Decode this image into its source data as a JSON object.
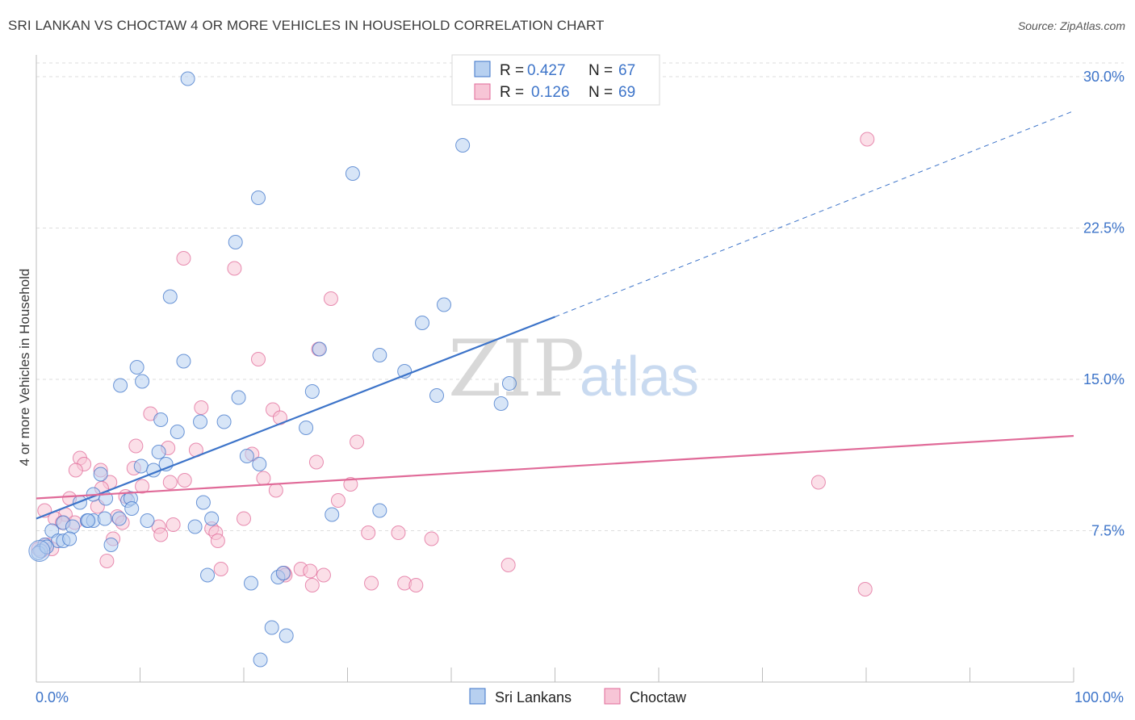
{
  "title": "SRI LANKAN VS CHOCTAW 4 OR MORE VEHICLES IN HOUSEHOLD CORRELATION CHART",
  "source": "Source: ZipAtlas.com",
  "watermark": {
    "zip": "ZIP",
    "atlas": "atlas"
  },
  "colors": {
    "blue": "#3d74c9",
    "blue_fill": "#b7d0f0",
    "pink": "#e06a98",
    "pink_fill": "#f7c5d6",
    "grid": "#dedede"
  },
  "chart_data": {
    "type": "scatter",
    "ylabel": "4 or more Vehicles in Household",
    "xlim": [
      0,
      100
    ],
    "ylim": [
      0,
      31
    ],
    "x_tick_labels": [
      "0.0%",
      "100.0%"
    ],
    "y_ticks": [
      7.5,
      15.0,
      22.5,
      30.0
    ],
    "y_tick_labels": [
      "7.5%",
      "15.0%",
      "22.5%",
      "30.0%"
    ],
    "legend": [
      {
        "name": "Sri Lankans",
        "r_label": "R =",
        "r_value": "0.427",
        "n_label": "N =",
        "n_value": "67"
      },
      {
        "name": "Choctaw",
        "r_label": "R =",
        "r_value": "0.126",
        "n_label": "N =",
        "n_value": "69"
      }
    ],
    "series": [
      {
        "name": "Sri Lankans",
        "color": "#3d74c9",
        "trend": {
          "x0": 0,
          "y0": 8.1,
          "x1": 50,
          "y1": 18.1,
          "dash_x1": 100,
          "dash_y1": 28.3
        },
        "points": [
          [
            14.6,
            29.9
          ],
          [
            41.1,
            26.6
          ],
          [
            30.5,
            25.2
          ],
          [
            21.4,
            24.0
          ],
          [
            19.2,
            21.8
          ],
          [
            12.9,
            19.1
          ],
          [
            39.3,
            18.7
          ],
          [
            37.2,
            17.8
          ],
          [
            27.3,
            16.5
          ],
          [
            33.1,
            16.2
          ],
          [
            14.2,
            15.9
          ],
          [
            9.7,
            15.6
          ],
          [
            10.2,
            14.9
          ],
          [
            8.1,
            14.7
          ],
          [
            38.6,
            14.2
          ],
          [
            35.5,
            15.4
          ],
          [
            45.6,
            14.8
          ],
          [
            44.8,
            13.8
          ],
          [
            19.5,
            14.1
          ],
          [
            26.6,
            14.4
          ],
          [
            12.0,
            13.0
          ],
          [
            15.8,
            12.9
          ],
          [
            18.1,
            12.9
          ],
          [
            13.6,
            12.4
          ],
          [
            26.0,
            12.6
          ],
          [
            11.8,
            11.4
          ],
          [
            20.3,
            11.2
          ],
          [
            10.1,
            10.7
          ],
          [
            11.3,
            10.5
          ],
          [
            12.5,
            10.8
          ],
          [
            21.5,
            10.8
          ],
          [
            6.2,
            10.3
          ],
          [
            5.5,
            9.3
          ],
          [
            6.7,
            9.1
          ],
          [
            8.8,
            9.0
          ],
          [
            9.1,
            9.1
          ],
          [
            16.1,
            8.9
          ],
          [
            4.2,
            8.9
          ],
          [
            9.2,
            8.6
          ],
          [
            28.5,
            8.3
          ],
          [
            33.1,
            8.5
          ],
          [
            16.9,
            8.1
          ],
          [
            8.0,
            8.1
          ],
          [
            4.9,
            8.0
          ],
          [
            5.5,
            8.0
          ],
          [
            6.6,
            8.1
          ],
          [
            10.7,
            8.0
          ],
          [
            2.6,
            7.9
          ],
          [
            3.5,
            7.7
          ],
          [
            15.3,
            7.7
          ],
          [
            1.5,
            7.5
          ],
          [
            2.1,
            7.0
          ],
          [
            2.6,
            7.0
          ],
          [
            3.2,
            7.1
          ],
          [
            0.8,
            6.8
          ],
          [
            7.2,
            6.8
          ],
          [
            0.4,
            6.5
          ],
          [
            0.2,
            6.4
          ],
          [
            16.5,
            5.3
          ],
          [
            20.7,
            4.9
          ],
          [
            23.3,
            5.2
          ],
          [
            23.8,
            5.4
          ],
          [
            22.7,
            2.7
          ],
          [
            24.1,
            2.3
          ],
          [
            21.6,
            1.1
          ],
          [
            1.0,
            6.7
          ],
          [
            5.0,
            8.0
          ]
        ]
      },
      {
        "name": "Choctaw",
        "color": "#e06a98",
        "trend": {
          "x0": 0,
          "y0": 9.1,
          "x1": 100,
          "y1": 12.2
        },
        "points": [
          [
            80.1,
            26.9
          ],
          [
            14.2,
            21.0
          ],
          [
            19.1,
            20.5
          ],
          [
            28.4,
            19.0
          ],
          [
            21.4,
            16.0
          ],
          [
            27.2,
            16.5
          ],
          [
            15.9,
            13.6
          ],
          [
            22.8,
            13.5
          ],
          [
            23.5,
            13.1
          ],
          [
            11.0,
            13.3
          ],
          [
            30.9,
            11.9
          ],
          [
            9.6,
            11.7
          ],
          [
            12.7,
            11.6
          ],
          [
            15.4,
            11.5
          ],
          [
            20.8,
            11.3
          ],
          [
            4.2,
            11.1
          ],
          [
            4.6,
            10.8
          ],
          [
            27.0,
            10.9
          ],
          [
            3.8,
            10.5
          ],
          [
            6.2,
            10.5
          ],
          [
            9.4,
            10.6
          ],
          [
            14.3,
            10.0
          ],
          [
            21.9,
            10.1
          ],
          [
            7.1,
            9.9
          ],
          [
            12.9,
            9.9
          ],
          [
            30.3,
            9.8
          ],
          [
            75.4,
            9.9
          ],
          [
            10.2,
            9.7
          ],
          [
            6.3,
            9.6
          ],
          [
            23.1,
            9.5
          ],
          [
            29.1,
            9.0
          ],
          [
            3.2,
            9.1
          ],
          [
            5.9,
            8.7
          ],
          [
            8.6,
            9.2
          ],
          [
            0.8,
            8.5
          ],
          [
            2.8,
            8.3
          ],
          [
            1.8,
            8.1
          ],
          [
            7.8,
            8.2
          ],
          [
            2.5,
            7.9
          ],
          [
            3.7,
            7.9
          ],
          [
            8.3,
            7.9
          ],
          [
            11.8,
            7.7
          ],
          [
            13.2,
            7.8
          ],
          [
            16.9,
            7.6
          ],
          [
            20.0,
            8.1
          ],
          [
            17.3,
            7.4
          ],
          [
            32.0,
            7.4
          ],
          [
            34.9,
            7.4
          ],
          [
            12.0,
            7.3
          ],
          [
            7.4,
            7.1
          ],
          [
            17.5,
            7.0
          ],
          [
            38.1,
            7.1
          ],
          [
            1.0,
            6.8
          ],
          [
            0.5,
            6.5
          ],
          [
            0.2,
            6.6
          ],
          [
            6.8,
            6.0
          ],
          [
            17.8,
            5.6
          ],
          [
            45.5,
            5.8
          ],
          [
            23.9,
            5.4
          ],
          [
            25.5,
            5.6
          ],
          [
            26.4,
            5.5
          ],
          [
            27.7,
            5.3
          ],
          [
            32.3,
            4.9
          ],
          [
            35.5,
            4.9
          ],
          [
            36.6,
            4.8
          ],
          [
            79.9,
            4.6
          ],
          [
            26.6,
            4.8
          ],
          [
            24.0,
            5.3
          ],
          [
            1.5,
            6.6
          ]
        ]
      }
    ]
  },
  "bottom_legend": [
    {
      "label": "Sri Lankans"
    },
    {
      "label": "Choctaw"
    }
  ]
}
